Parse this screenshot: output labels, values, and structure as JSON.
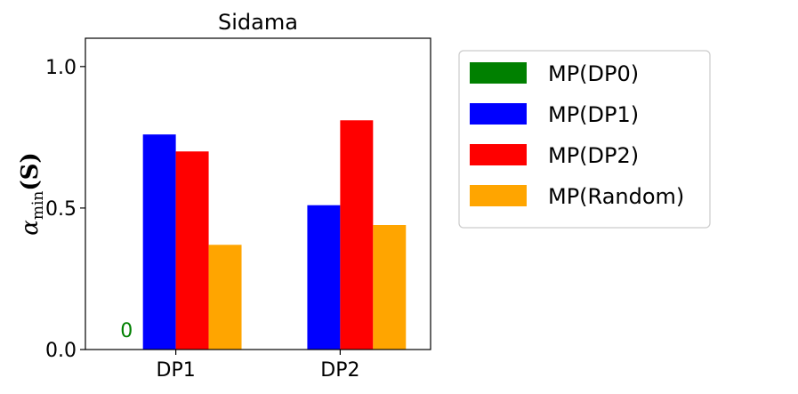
{
  "chart_data": {
    "type": "bar",
    "title": "Sidama",
    "xlabel": "",
    "ylabel": "α_min(S)",
    "ylabel_parts": {
      "base": "α",
      "sub": "min",
      "arg": "(S)"
    },
    "categories": [
      "DP1",
      "DP2"
    ],
    "ylim": [
      0.0,
      1.1
    ],
    "yticks": [
      0.0,
      0.5,
      1.0
    ],
    "ytick_labels": [
      "0.0",
      "0.5",
      "1.0"
    ],
    "grid": false,
    "legend_position": "outside-right",
    "series": [
      {
        "name": "MP(DP0)",
        "color": "#008000",
        "values": [
          0,
          null
        ]
      },
      {
        "name": "MP(DP1)",
        "color": "#0000ff",
        "values": [
          0.76,
          0.51
        ]
      },
      {
        "name": "MP(DP2)",
        "color": "#ff0000",
        "values": [
          0.7,
          0.81
        ]
      },
      {
        "name": "MP(Random)",
        "color": "#ffa500",
        "values": [
          0.37,
          0.44
        ]
      }
    ],
    "annotations": [
      {
        "text": "0",
        "category": "DP1",
        "series": "MP(DP0)",
        "color": "#008000"
      }
    ]
  }
}
